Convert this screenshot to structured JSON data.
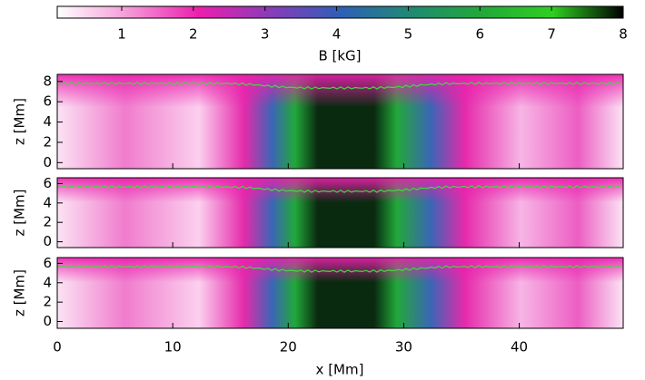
{
  "chart_data": {
    "type": "heatmap",
    "colorbar": {
      "label": "B [kG]",
      "lim": [
        0.1,
        8
      ],
      "ticks": [
        1,
        2,
        3,
        4,
        5,
        6,
        7,
        8
      ],
      "colors": [
        "#ffffff",
        "#f59ad8",
        "#ec1fae",
        "#8a3bb8",
        "#2f5fb8",
        "#1f8a73",
        "#22a83a",
        "#2fcf22",
        "#000000"
      ]
    },
    "xlabel": "x [Mm]",
    "xlim": [
      0,
      49
    ],
    "xticks": [
      0,
      10,
      20,
      30,
      40
    ],
    "panels": [
      {
        "ylabel": "z [Mm]",
        "ylim": [
          -0.6,
          8.7
        ],
        "yticks": [
          0,
          2,
          4,
          6,
          8
        ]
      },
      {
        "ylabel": "z [Mm]",
        "ylim": [
          -0.6,
          6.6
        ],
        "yticks": [
          0,
          2,
          4,
          6
        ]
      },
      {
        "ylabel": "z [Mm]",
        "ylim": [
          -0.7,
          6.6
        ],
        "yticks": [
          0,
          2,
          4,
          6
        ]
      }
    ]
  }
}
